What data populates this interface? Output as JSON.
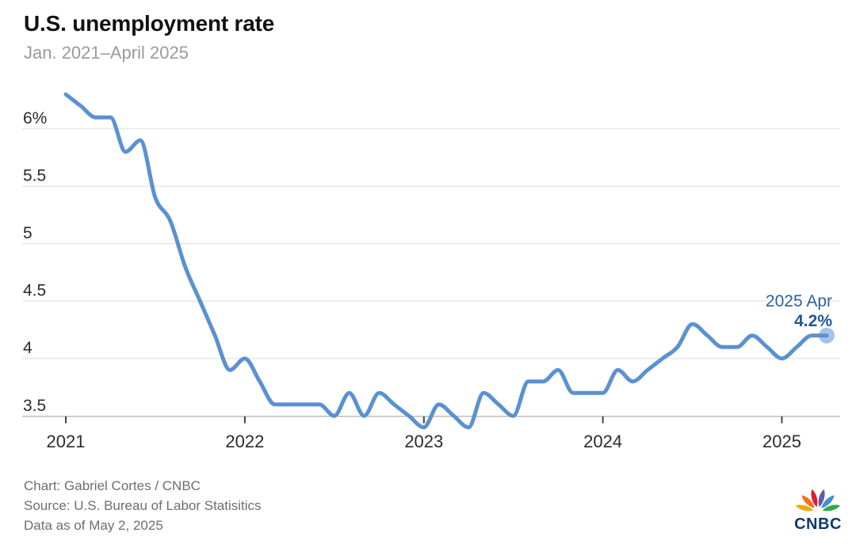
{
  "header": {
    "title": "U.S. unemployment rate",
    "subtitle": "Jan. 2021–April 2025"
  },
  "chart_data": {
    "type": "line",
    "title": "U.S. unemployment rate",
    "subtitle": "Jan. 2021–April 2025",
    "x_unit": "month",
    "x_range": [
      "Jan 2021",
      "Apr 2025"
    ],
    "xtick_labels": [
      "2021",
      "2022",
      "2023",
      "2024",
      "2025"
    ],
    "ytick_values": [
      6,
      5.5,
      5,
      4.5,
      4,
      3.5
    ],
    "ytick_labels": [
      "6%",
      "5.5",
      "5",
      "4.5",
      "4",
      "3.5"
    ],
    "ylim": [
      3.3,
      6.5
    ],
    "grid": "horizontal",
    "legend": "none",
    "line_color": "#5b91d1",
    "dot_color": "#5b91d1",
    "dot_opacity": 0.55,
    "series": [
      {
        "name": "U.S. unemployment rate (%)",
        "start_month": "2021-01",
        "values": [
          6.3,
          6.2,
          6.1,
          6.1,
          5.8,
          5.9,
          5.4,
          5.2,
          4.8,
          4.5,
          4.2,
          3.9,
          4.0,
          3.8,
          3.6,
          3.6,
          3.6,
          3.6,
          3.5,
          3.7,
          3.5,
          3.7,
          3.6,
          3.5,
          3.4,
          3.6,
          3.5,
          3.4,
          3.7,
          3.6,
          3.5,
          3.8,
          3.8,
          3.9,
          3.7,
          3.7,
          3.7,
          3.9,
          3.8,
          3.9,
          4.0,
          4.1,
          4.3,
          4.2,
          4.1,
          4.1,
          4.2,
          4.1,
          4.0,
          4.1,
          4.2,
          4.2
        ]
      }
    ],
    "annotation": {
      "date_label": "2025 Apr",
      "value_label": "4.2%",
      "month": "2025-04",
      "value": 4.2
    }
  },
  "footer": {
    "credit": "Chart: Gabriel Cortes / CNBC",
    "source": "Source: U.S. Bureau of Labor Statisitics",
    "as_of": "Data as of May 2, 2025"
  },
  "logo": {
    "wordmark": "CNBC",
    "peacock_colors": [
      "#f0ab00",
      "#f4711f",
      "#d61f33",
      "#6a57a5",
      "#3f8fd8",
      "#2faa4a"
    ]
  }
}
